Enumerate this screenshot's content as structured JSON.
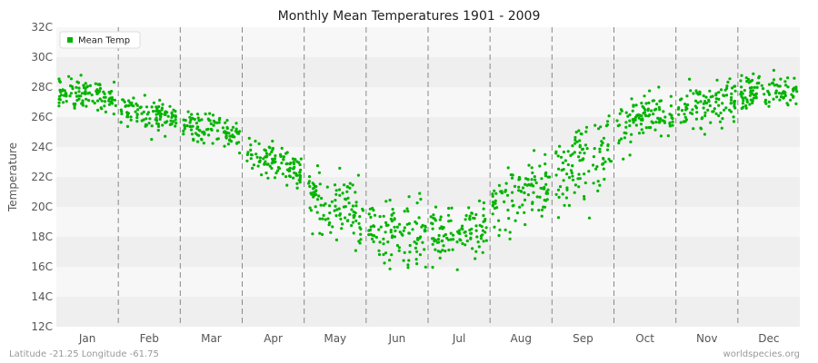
{
  "chart_data": {
    "type": "scatter",
    "title": "Monthly Mean Temperatures 1901 - 2009",
    "ylabel": "Temperature",
    "xlabel": "",
    "ylim": [
      12,
      32
    ],
    "y_ticks": [
      "12C",
      "14C",
      "16C",
      "18C",
      "20C",
      "22C",
      "24C",
      "26C",
      "28C",
      "30C",
      "32C"
    ],
    "categories": [
      "Jan",
      "Feb",
      "Mar",
      "Apr",
      "May",
      "Jun",
      "Jul",
      "Aug",
      "Sep",
      "Oct",
      "Nov",
      "Dec"
    ],
    "grid": "alternating horizontal bands, dashed vertical month separators",
    "legend_position": "top-left",
    "series": [
      {
        "name": "Mean Temp",
        "color": "#00b400",
        "years": "1901-2009",
        "monthly_mean": [
          27.5,
          26.2,
          25.3,
          23.0,
          20.0,
          18.3,
          18.1,
          21.0,
          23.2,
          26.0,
          26.8,
          27.8
        ],
        "monthly_min": [
          25.1,
          23.8,
          22.8,
          20.4,
          15.2,
          13.9,
          13.8,
          16.2,
          17.5,
          23.0,
          23.5,
          25.6
        ],
        "monthly_max": [
          29.5,
          28.6,
          27.3,
          25.4,
          25.1,
          21.3,
          21.0,
          24.0,
          27.3,
          29.5,
          29.4,
          30.3
        ]
      }
    ]
  },
  "legend": {
    "label": "Mean Temp"
  },
  "footer": {
    "location": "Latitude -21.25 Longitude -61.75",
    "source": "worldspecies.org"
  },
  "colors": {
    "point": "#00b400",
    "band_light": "#f7f7f7",
    "band_dark": "#efefef",
    "separator": "#888888"
  }
}
